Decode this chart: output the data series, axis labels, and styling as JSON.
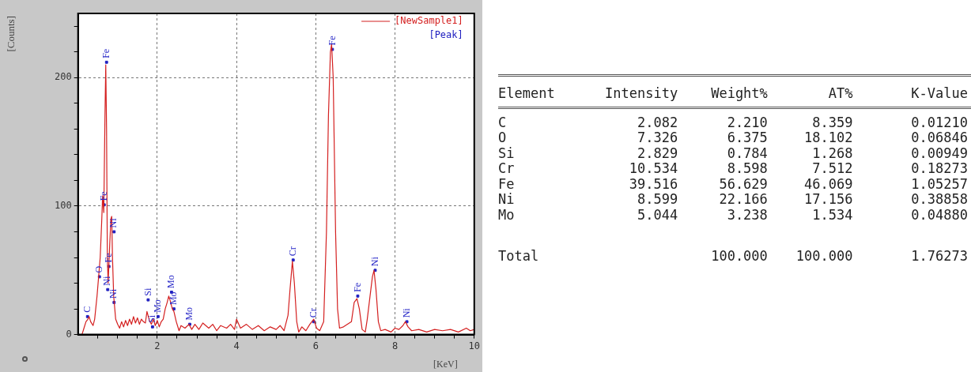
{
  "chart_data": [
    {
      "type": "line",
      "xlabel": "[KeV]",
      "ylabel": "[Counts]",
      "xlim": [
        0,
        10
      ],
      "ylim": [
        0,
        250
      ],
      "xticks": [
        {
          "value": 0.5,
          "label": null
        },
        {
          "value": 1,
          "label": null
        },
        {
          "value": 1.5,
          "label": null
        },
        2,
        {
          "value": 2.5,
          "label": null
        },
        {
          "value": 3,
          "label": null
        },
        {
          "value": 3.5,
          "label": null
        },
        4,
        {
          "value": 4.5,
          "label": null
        },
        {
          "value": 5,
          "label": null
        },
        {
          "value": 5.5,
          "label": null
        },
        6,
        {
          "value": 6.5,
          "label": null
        },
        {
          "value": 7,
          "label": null
        },
        {
          "value": 7.5,
          "label": null
        },
        8,
        {
          "value": 8.5,
          "label": null
        },
        {
          "value": 9,
          "label": null
        },
        {
          "value": 9.5,
          "label": null
        },
        10
      ],
      "yticks": [
        0,
        {
          "value": 20,
          "label": null
        },
        {
          "value": 40,
          "label": null
        },
        {
          "value": 60,
          "label": null
        },
        {
          "value": 80,
          "label": null
        },
        100,
        {
          "value": 120,
          "label": null
        },
        {
          "value": 140,
          "label": null
        },
        {
          "value": 160,
          "label": null
        },
        {
          "value": 180,
          "label": null
        },
        200,
        {
          "value": 220,
          "label": null
        },
        {
          "value": 240,
          "label": null
        }
      ],
      "grid": true,
      "legend": "top right",
      "series": [
        {
          "name": "[NewSample1]",
          "type": "line",
          "color": "#d42020",
          "x": [
            0.1,
            0.15,
            0.2,
            0.25,
            0.28,
            0.32,
            0.38,
            0.42,
            0.48,
            0.52,
            0.56,
            0.6,
            0.62,
            0.65,
            0.68,
            0.7,
            0.72,
            0.74,
            0.76,
            0.78,
            0.8,
            0.83,
            0.85,
            0.87,
            0.9,
            0.95,
            1.0,
            1.05,
            1.1,
            1.15,
            1.2,
            1.25,
            1.3,
            1.35,
            1.4,
            1.45,
            1.5,
            1.55,
            1.6,
            1.65,
            1.7,
            1.74,
            1.8,
            1.85,
            1.9,
            1.95,
            2.0,
            2.05,
            2.1,
            2.15,
            2.2,
            2.25,
            2.29,
            2.33,
            2.38,
            2.42,
            2.48,
            2.55,
            2.6,
            2.7,
            2.8,
            2.87,
            2.95,
            3.05,
            3.15,
            3.3,
            3.4,
            3.5,
            3.6,
            3.75,
            3.85,
            3.95,
            4.0,
            4.1,
            4.25,
            4.4,
            4.55,
            4.7,
            4.85,
            5.0,
            5.1,
            5.2,
            5.3,
            5.35,
            5.41,
            5.46,
            5.52,
            5.57,
            5.65,
            5.75,
            5.85,
            5.95,
            6.02,
            6.1,
            6.2,
            6.27,
            6.32,
            6.37,
            6.4,
            6.44,
            6.5,
            6.55,
            6.6,
            6.7,
            6.8,
            6.9,
            6.97,
            7.04,
            7.1,
            7.17,
            7.25,
            7.3,
            7.37,
            7.43,
            7.47,
            7.52,
            7.58,
            7.64,
            7.75,
            7.9,
            8.0,
            8.1,
            8.2,
            8.26,
            8.33,
            8.42,
            8.6,
            8.8,
            9.0,
            9.2,
            9.4,
            9.6,
            9.8,
            9.9,
            10
          ],
          "values": [
            0,
            5,
            10,
            12,
            14,
            10,
            7,
            12,
            30,
            45,
            60,
            90,
            108,
            95,
            170,
            210,
            160,
            60,
            40,
            55,
            70,
            90,
            92,
            60,
            30,
            12,
            8,
            5,
            10,
            6,
            11,
            7,
            12,
            8,
            14,
            9,
            13,
            8,
            12,
            10,
            9,
            18,
            11,
            8,
            12,
            7,
            11,
            6,
            10,
            12,
            20,
            25,
            30,
            26,
            20,
            18,
            10,
            3,
            7,
            5,
            8,
            4,
            8,
            4,
            9,
            5,
            8,
            3,
            7,
            5,
            8,
            4,
            12,
            5,
            8,
            4,
            7,
            3,
            6,
            4,
            7,
            3,
            15,
            35,
            57,
            40,
            10,
            2,
            6,
            3,
            8,
            12,
            5,
            3,
            10,
            80,
            170,
            220,
            226,
            200,
            80,
            20,
            5,
            6,
            8,
            10,
            25,
            28,
            20,
            4,
            2,
            12,
            30,
            45,
            50,
            35,
            10,
            3,
            4,
            2,
            5,
            4,
            7,
            10,
            6,
            3,
            4,
            2,
            4,
            3,
            4,
            2,
            5,
            3,
            4
          ]
        },
        {
          "name": "[Peak]",
          "type": "scatter",
          "marker": "square",
          "color": "#2020c0",
          "x": [
            0.24,
            0.54,
            0.66,
            0.72,
            0.75,
            0.78,
            0.91,
            0.91,
            1.77,
            1.88,
            2.02,
            2.36,
            2.42,
            2.82,
            5.43,
            5.95,
            6.42,
            7.06,
            7.5,
            8.3
          ],
          "values": [
            14,
            45,
            101,
            212,
            35,
            53,
            25,
            80,
            27,
            6,
            14,
            33,
            20,
            8,
            58,
            10,
            222,
            30,
            50,
            10
          ]
        }
      ],
      "annotations": [
        {
          "text": "C",
          "x": 0.24,
          "y": 14
        },
        {
          "text": "O",
          "x": 0.54,
          "y": 45
        },
        {
          "text": "Fe",
          "x": 0.66,
          "y": 101
        },
        {
          "text": "Fe",
          "x": 0.72,
          "y": 212
        },
        {
          "text": "Ni",
          "x": 0.75,
          "y": 35
        },
        {
          "text": "Fe",
          "x": 0.78,
          "y": 53
        },
        {
          "text": "Ni",
          "x": 0.91,
          "y": 25
        },
        {
          "text": "Ni",
          "x": 0.91,
          "y": 80
        },
        {
          "text": "Si",
          "x": 1.77,
          "y": 27
        },
        {
          "text": "Si",
          "x": 1.88,
          "y": 6
        },
        {
          "text": "Mo",
          "x": 2.02,
          "y": 14
        },
        {
          "text": "Mo",
          "x": 2.36,
          "y": 33
        },
        {
          "text": "Mo",
          "x": 2.42,
          "y": 20
        },
        {
          "text": "Mo",
          "x": 2.82,
          "y": 8
        },
        {
          "text": "Cr",
          "x": 5.43,
          "y": 58
        },
        {
          "text": "Cr",
          "x": 5.95,
          "y": 10
        },
        {
          "text": "Fe",
          "x": 6.42,
          "y": 222
        },
        {
          "text": "Fe",
          "x": 7.06,
          "y": 30
        },
        {
          "text": "Ni",
          "x": 7.5,
          "y": 50
        },
        {
          "text": "Ni",
          "x": 8.3,
          "y": 10
        }
      ]
    },
    {
      "type": "other",
      "ylabel": "Element",
      "categories": [
        "C",
        "O",
        "Si",
        "Cr",
        "Fe",
        "Ni",
        "Mo",
        "Total"
      ],
      "series": [
        {
          "name": "Intensity",
          "values": [
            2.082,
            7.326,
            2.829,
            10.534,
            39.516,
            8.599,
            5.044,
            null
          ],
          "value_labels": [
            "2.082",
            "7.326",
            "2.829",
            "10.534",
            "39.516",
            "8.599",
            "5.044",
            null
          ]
        },
        {
          "name": "Weight%",
          "values": [
            2.21,
            6.375,
            0.784,
            8.598,
            56.629,
            22.166,
            3.238,
            100
          ],
          "value_labels": [
            "2.210",
            "6.375",
            "0.784",
            "8.598",
            "56.629",
            "22.166",
            "3.238",
            "100.000"
          ]
        },
        {
          "name": "AT%",
          "values": [
            8.359,
            18.102,
            1.268,
            7.512,
            46.069,
            17.156,
            1.534,
            100
          ],
          "value_labels": [
            "8.359",
            "18.102",
            "1.268",
            "7.512",
            "46.069",
            "17.156",
            "1.534",
            "100.000"
          ]
        },
        {
          "name": "K-Value",
          "values": [
            0.0121,
            0.06846,
            0.00949,
            0.18273,
            1.05257,
            0.38858,
            0.0488,
            1.76273
          ],
          "value_labels": [
            "0.01210",
            "0.06846",
            "0.00949",
            "0.18273",
            "1.05257",
            "0.38858",
            "0.04880",
            "1.76273"
          ]
        }
      ]
    }
  ]
}
